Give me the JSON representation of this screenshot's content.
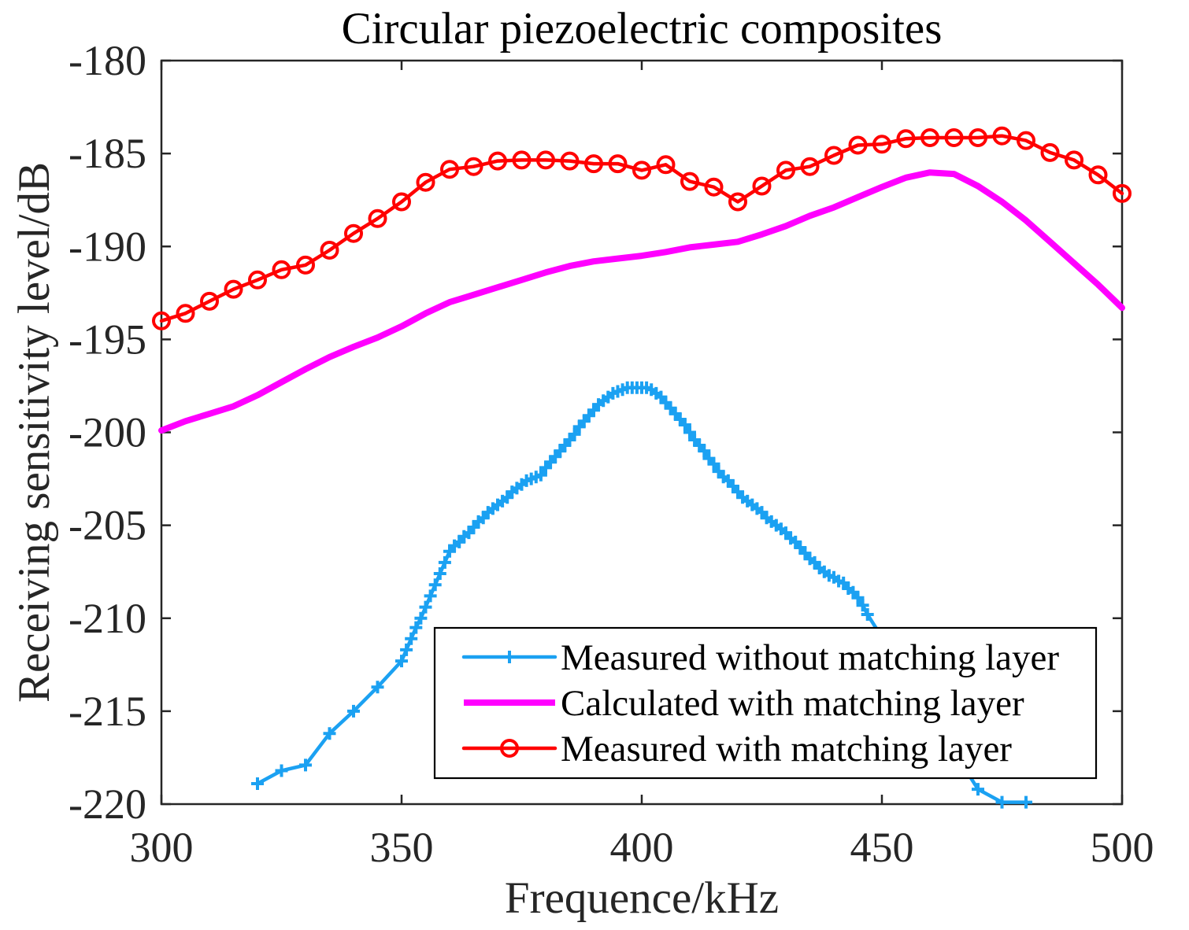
{
  "chart_data": {
    "type": "line",
    "title": "Circular piezoelectric composites",
    "xlabel": "Frequence/kHz",
    "ylabel": "Receiving sensitivity level/dB",
    "xlim": [
      300,
      500
    ],
    "ylim": [
      -220,
      -180
    ],
    "xticks": [
      300,
      350,
      400,
      450,
      500
    ],
    "yticks": [
      -220,
      -215,
      -210,
      -205,
      -200,
      -195,
      -190,
      -185,
      -180
    ],
    "grid": false,
    "legend": {
      "position": "bottom-right"
    },
    "series": [
      {
        "name": "Measured without matching layer",
        "color": "#1ba1f2",
        "marker": "plus",
        "x": [
          320,
          325,
          330,
          335,
          340,
          345,
          350,
          351,
          352,
          353,
          354,
          355,
          356,
          357,
          358,
          359,
          360,
          361,
          362,
          363,
          364,
          365,
          366,
          367,
          368,
          369,
          370,
          371,
          372,
          373,
          374,
          375,
          376,
          377,
          378,
          379,
          380,
          381,
          382,
          383,
          384,
          385,
          386,
          387,
          388,
          389,
          390,
          391,
          392,
          393,
          394,
          395,
          396,
          397,
          398,
          399,
          400,
          401,
          402,
          403,
          404,
          405,
          406,
          407,
          408,
          409,
          410,
          411,
          412,
          413,
          414,
          415,
          416,
          417,
          418,
          419,
          420,
          421,
          422,
          423,
          424,
          425,
          426,
          427,
          428,
          429,
          430,
          431,
          432,
          433,
          434,
          435,
          436,
          437,
          438,
          439,
          440,
          441,
          442,
          443,
          444,
          445,
          446,
          447,
          470,
          475,
          480
        ],
        "y": [
          -218.9,
          -218.2,
          -217.9,
          -216.2,
          -215.0,
          -213.7,
          -212.3,
          -211.7,
          -211.1,
          -210.5,
          -210.0,
          -209.4,
          -208.8,
          -208.2,
          -207.6,
          -207.0,
          -206.4,
          -206.1,
          -205.9,
          -205.6,
          -205.4,
          -205.1,
          -204.8,
          -204.6,
          -204.3,
          -204.1,
          -203.9,
          -203.7,
          -203.5,
          -203.2,
          -203.0,
          -202.8,
          -202.6,
          -202.5,
          -202.4,
          -202.3,
          -201.9,
          -201.6,
          -201.3,
          -201.0,
          -200.7,
          -200.4,
          -200.1,
          -199.7,
          -199.4,
          -199.1,
          -198.8,
          -198.5,
          -198.3,
          -198.1,
          -197.9,
          -197.8,
          -197.7,
          -197.6,
          -197.6,
          -197.6,
          -197.6,
          -197.6,
          -197.7,
          -197.9,
          -198.1,
          -198.4,
          -198.7,
          -199.0,
          -199.3,
          -199.6,
          -200.0,
          -200.4,
          -200.7,
          -201.0,
          -201.4,
          -201.7,
          -202.1,
          -202.4,
          -202.6,
          -202.9,
          -203.2,
          -203.5,
          -203.7,
          -203.9,
          -204.1,
          -204.3,
          -204.6,
          -204.8,
          -205.0,
          -205.2,
          -205.4,
          -205.7,
          -205.9,
          -206.2,
          -206.5,
          -206.8,
          -207.0,
          -207.3,
          -207.5,
          -207.7,
          -207.8,
          -208.0,
          -208.1,
          -208.4,
          -208.6,
          -208.9,
          -209.3,
          -209.8,
          -219.2,
          -219.9,
          -219.9
        ]
      },
      {
        "name": "Calculated with matching layer",
        "color": "#ff00ff",
        "marker": "none",
        "x": [
          300,
          305,
          310,
          315,
          320,
          325,
          330,
          335,
          340,
          345,
          350,
          355,
          360,
          365,
          370,
          375,
          380,
          385,
          390,
          395,
          400,
          405,
          410,
          415,
          420,
          425,
          430,
          435,
          440,
          445,
          450,
          455,
          460,
          465,
          470,
          475,
          480,
          485,
          490,
          495,
          500
        ],
        "y": [
          -199.9,
          -199.4,
          -199.0,
          -198.6,
          -198.0,
          -197.3,
          -196.6,
          -195.95,
          -195.4,
          -194.9,
          -194.3,
          -193.6,
          -193.0,
          -192.6,
          -192.2,
          -191.8,
          -191.4,
          -191.05,
          -190.8,
          -190.65,
          -190.5,
          -190.3,
          -190.05,
          -189.9,
          -189.75,
          -189.35,
          -188.9,
          -188.35,
          -187.9,
          -187.35,
          -186.8,
          -186.3,
          -186.02,
          -186.1,
          -186.75,
          -187.6,
          -188.6,
          -189.75,
          -190.9,
          -192.05,
          -193.3
        ]
      },
      {
        "name": "Measured with matching layer",
        "color": "#ff0000",
        "marker": "circle",
        "x": [
          300,
          305,
          310,
          315,
          320,
          325,
          330,
          335,
          340,
          345,
          350,
          355,
          360,
          365,
          370,
          375,
          380,
          385,
          390,
          395,
          400,
          405,
          410,
          415,
          420,
          425,
          430,
          435,
          440,
          445,
          450,
          455,
          460,
          465,
          470,
          475,
          480,
          485,
          490,
          495,
          500
        ],
        "y": [
          -194.0,
          -193.6,
          -192.95,
          -192.3,
          -191.8,
          -191.25,
          -191.0,
          -190.2,
          -189.3,
          -188.5,
          -187.6,
          -186.55,
          -185.85,
          -185.7,
          -185.4,
          -185.35,
          -185.35,
          -185.4,
          -185.55,
          -185.55,
          -185.9,
          -185.6,
          -186.5,
          -186.8,
          -187.6,
          -186.75,
          -185.9,
          -185.7,
          -185.1,
          -184.55,
          -184.5,
          -184.2,
          -184.15,
          -184.15,
          -184.15,
          -184.05,
          -184.3,
          -184.95,
          -185.35,
          -186.15,
          -187.15
        ]
      }
    ]
  }
}
